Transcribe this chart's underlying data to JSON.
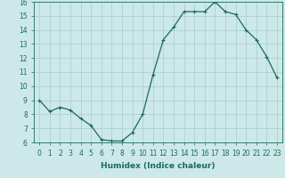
{
  "x": [
    0,
    1,
    2,
    3,
    4,
    5,
    6,
    7,
    8,
    9,
    10,
    11,
    12,
    13,
    14,
    15,
    16,
    17,
    18,
    19,
    20,
    21,
    22,
    23
  ],
  "y": [
    9.0,
    8.2,
    8.5,
    8.3,
    7.7,
    7.2,
    6.2,
    6.1,
    6.1,
    6.7,
    8.0,
    10.8,
    13.3,
    14.2,
    15.3,
    15.3,
    15.3,
    16.0,
    15.3,
    15.1,
    14.0,
    13.3,
    12.1,
    10.6
  ],
  "line_color": "#1a6b5a",
  "marker": "+",
  "marker_size": 3,
  "bg_color": "#cce8e8",
  "grid_color": "#aacccc",
  "xlabel": "Humidex (Indice chaleur)",
  "ylim": [
    6,
    16
  ],
  "xlim_min": -0.5,
  "xlim_max": 23.5,
  "yticks": [
    6,
    7,
    8,
    9,
    10,
    11,
    12,
    13,
    14,
    15,
    16
  ],
  "xticks": [
    0,
    1,
    2,
    3,
    4,
    5,
    6,
    7,
    8,
    9,
    10,
    11,
    12,
    13,
    14,
    15,
    16,
    17,
    18,
    19,
    20,
    21,
    22,
    23
  ],
  "tick_fontsize": 5.5,
  "xlabel_fontsize": 6.5,
  "line_width": 0.9,
  "marker_edge_width": 0.8
}
